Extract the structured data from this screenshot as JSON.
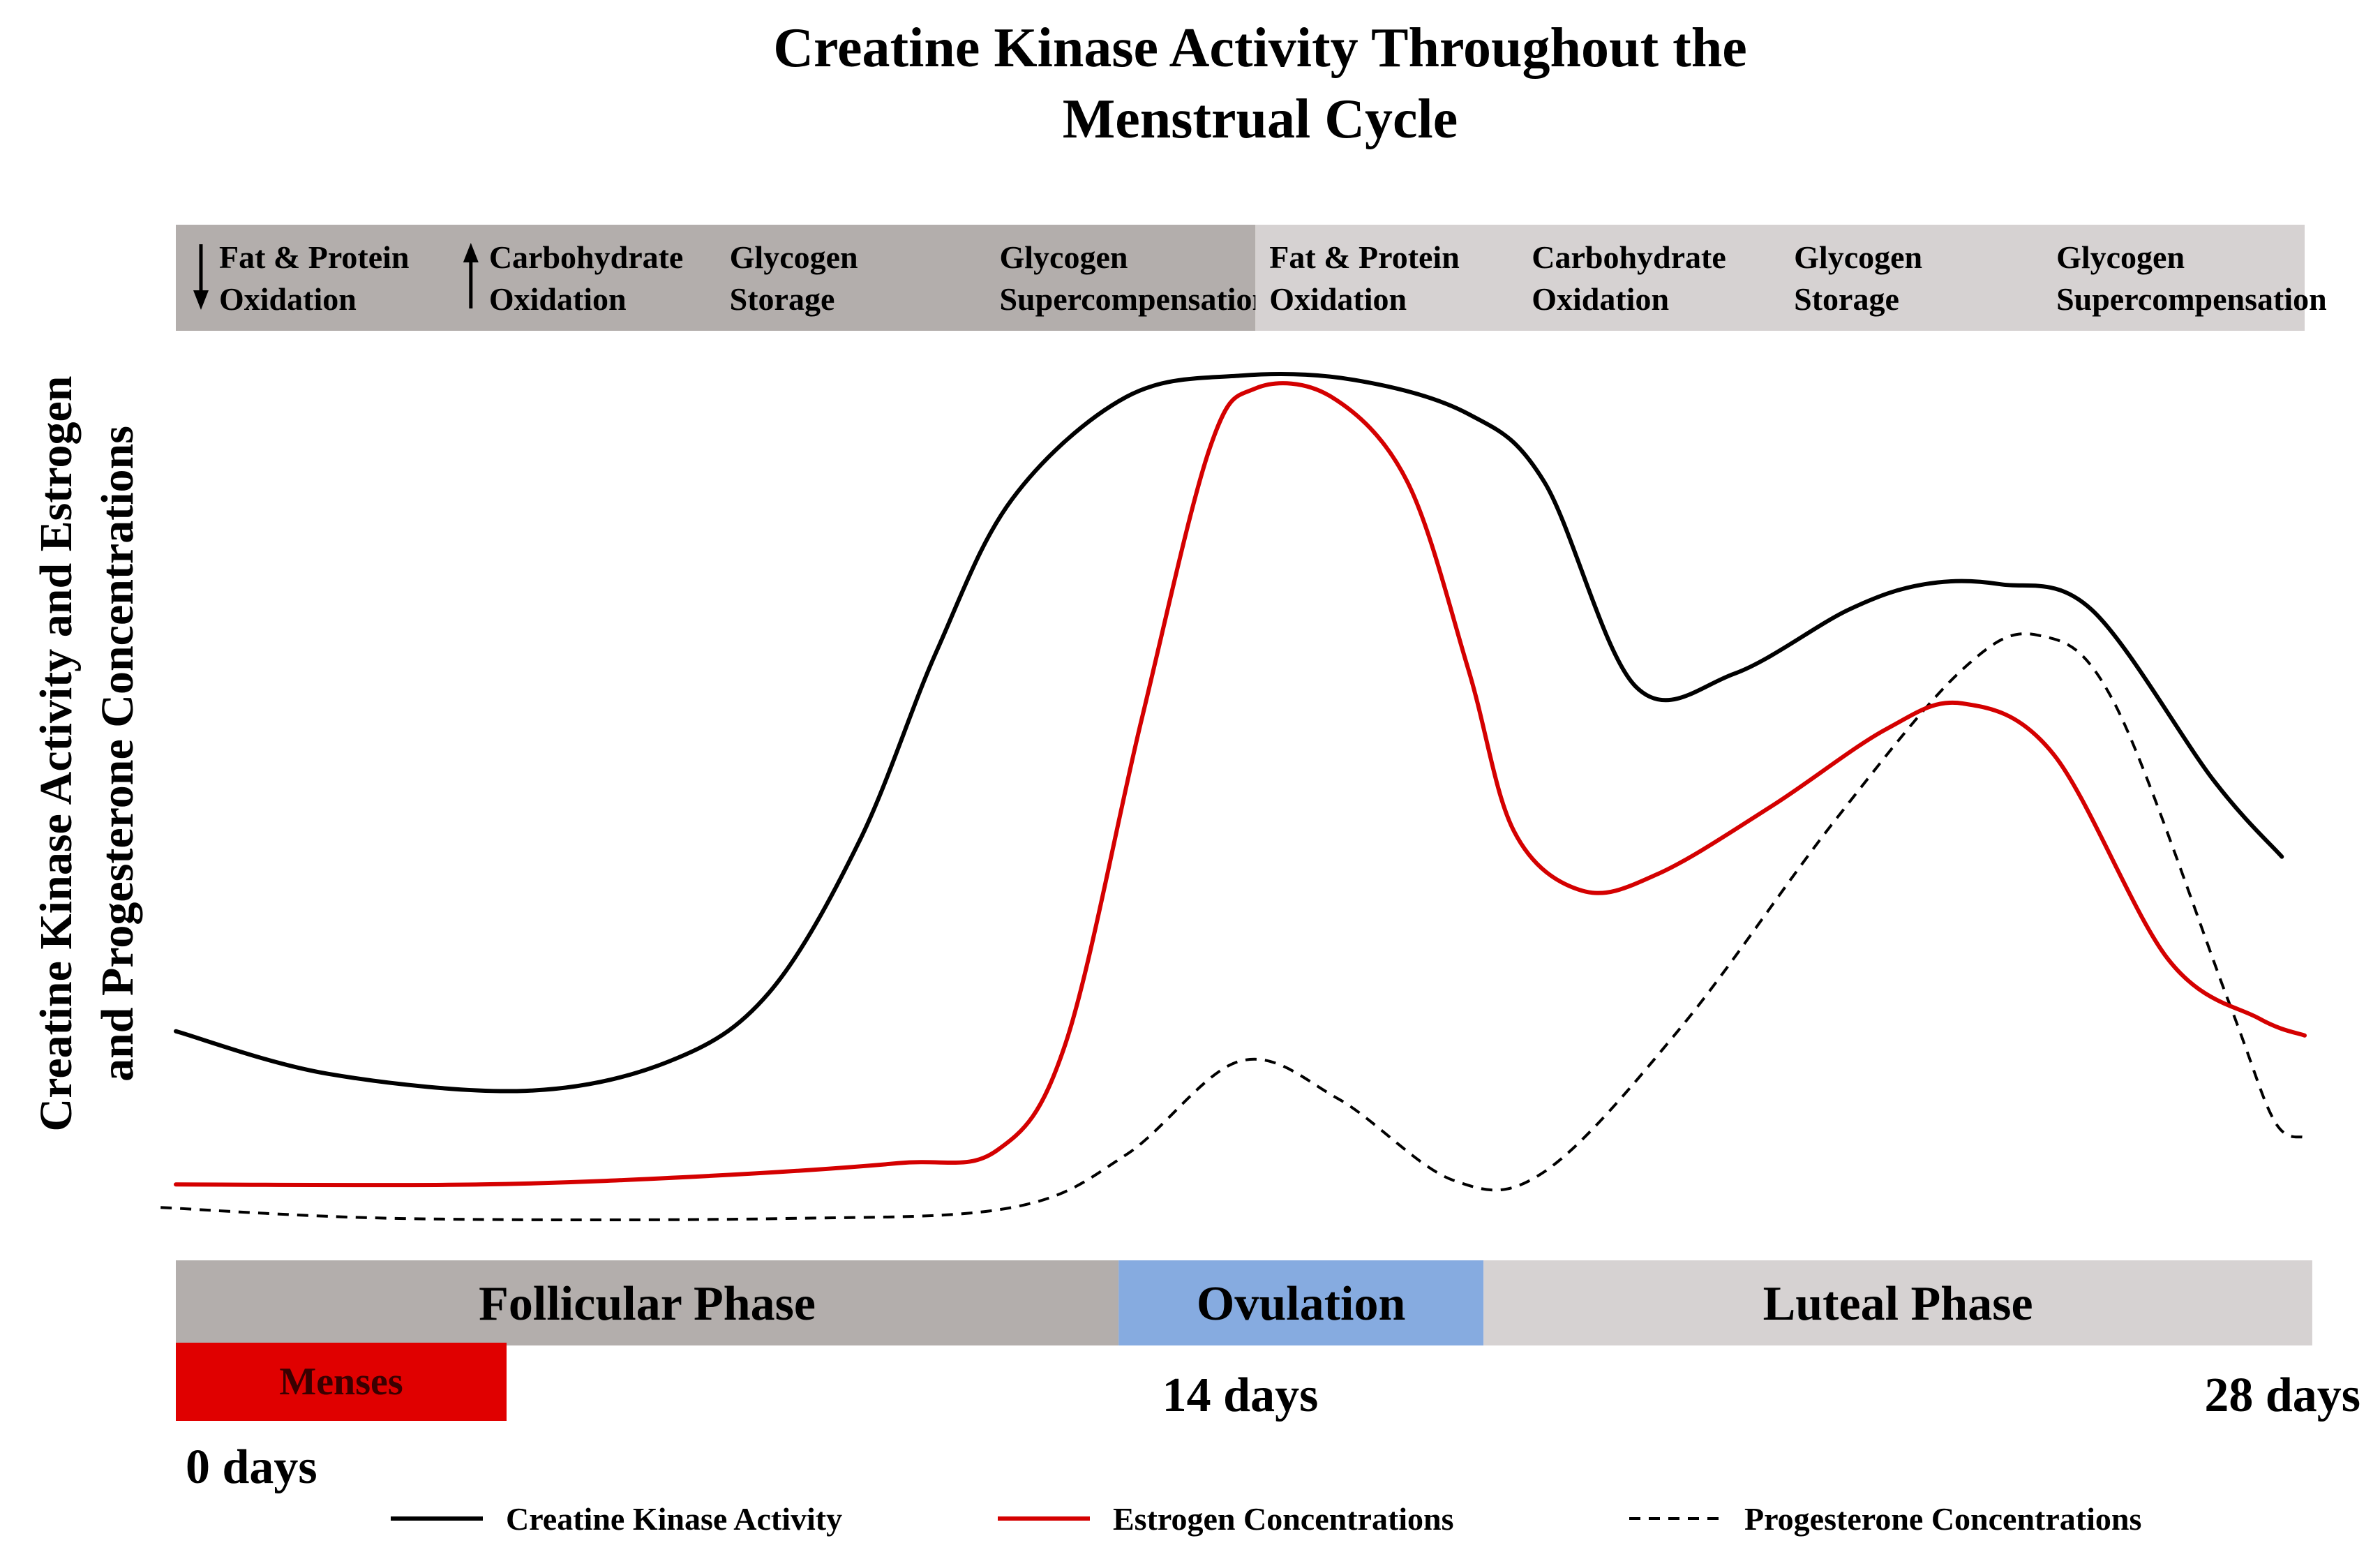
{
  "chart_data": {
    "type": "line",
    "title": [
      "Creatine Kinase Activity Throughout the",
      "Menstrual Cycle"
    ],
    "ylabel": [
      "Creatine Kinase Activity and Estrogen",
      "and Progesterone Concentrations"
    ],
    "xlim": [
      0,
      28
    ],
    "ylim": [
      0,
      100
    ],
    "x_ticks": [
      {
        "x": 0,
        "label": "0 days"
      },
      {
        "x": 14,
        "label": "14 days"
      },
      {
        "x": 28,
        "label": "28 days"
      }
    ],
    "top_bands": [
      {
        "x_start": 0,
        "x_end": 14.2,
        "color": "#b3aeac",
        "items": [
          {
            "arrow": "down",
            "lines": [
              "Fat & Protein",
              "Oxidation"
            ]
          },
          {
            "arrow": "up",
            "lines": [
              "Carbohydrate",
              "Oxidation"
            ]
          },
          {
            "arrow": "",
            "lines": [
              "Glycogen",
              "Storage"
            ]
          },
          {
            "arrow": "",
            "lines": [
              "Glycogen",
              "Supercompensation"
            ]
          }
        ]
      },
      {
        "x_start": 14.2,
        "x_end": 28,
        "color": "#d6d2d2",
        "items": [
          {
            "arrow": "",
            "lines": [
              "Fat & Protein",
              "Oxidation"
            ]
          },
          {
            "arrow": "",
            "lines": [
              "Carbohydrate",
              "Oxidation"
            ]
          },
          {
            "arrow": "",
            "lines": [
              "Glycogen",
              "Storage"
            ]
          },
          {
            "arrow": "",
            "lines": [
              "Glycogen",
              "Supercompensation"
            ]
          }
        ]
      }
    ],
    "phases": [
      {
        "label": "Follicular Phase",
        "x_start": 0,
        "x_end": 12.4,
        "color": "#b3aeac"
      },
      {
        "label": "Ovulation",
        "x_start": 12.4,
        "x_end": 17.2,
        "color": "#86abe0"
      },
      {
        "label": "Luteal Phase",
        "x_start": 17.2,
        "x_end": 28.1,
        "color": "#d6d2d2"
      }
    ],
    "menses": {
      "label": "Menses",
      "x_start": 0,
      "x_end": 4.35,
      "color": "#e00000"
    },
    "series": [
      {
        "name": "Creatine Kinase Activity",
        "color": "#000000",
        "dash": "solid",
        "points": [
          [
            0,
            21.5
          ],
          [
            2,
            16.5
          ],
          [
            4.6,
            14.5
          ],
          [
            6.5,
            18
          ],
          [
            7.8,
            26
          ],
          [
            9,
            44
          ],
          [
            10,
            66
          ],
          [
            11,
            84
          ],
          [
            12.5,
            96
          ],
          [
            14,
            98.5
          ],
          [
            15.5,
            98
          ],
          [
            17,
            94
          ],
          [
            18,
            86
          ],
          [
            19.2,
            62
          ],
          [
            20.5,
            63.5
          ],
          [
            22,
            71
          ],
          [
            23,
            74
          ],
          [
            24,
            74
          ],
          [
            25.2,
            71
          ],
          [
            26.8,
            51
          ],
          [
            27.7,
            42
          ]
        ]
      },
      {
        "name": "Estrogen Concentrations",
        "color": "#d40000",
        "dash": "solid",
        "points": [
          [
            0,
            3.5
          ],
          [
            4,
            3.5
          ],
          [
            7,
            4.5
          ],
          [
            9.5,
            6
          ],
          [
            10.8,
            7.5
          ],
          [
            11.7,
            20
          ],
          [
            12.7,
            58
          ],
          [
            13.6,
            90
          ],
          [
            14.2,
            97
          ],
          [
            15.2,
            96
          ],
          [
            16.2,
            86
          ],
          [
            17,
            64
          ],
          [
            17.6,
            45
          ],
          [
            18.5,
            38
          ],
          [
            19.5,
            40
          ],
          [
            21,
            48
          ],
          [
            22.5,
            57
          ],
          [
            23.5,
            60
          ],
          [
            24.7,
            54
          ],
          [
            26.2,
            30
          ],
          [
            27.4,
            23
          ],
          [
            28,
            21
          ]
        ]
      },
      {
        "name": "Progesterone Concentrations",
        "color": "#000000",
        "dash": "dashed",
        "points": [
          [
            -0.2,
            0.8
          ],
          [
            3,
            -0.5
          ],
          [
            8,
            -0.5
          ],
          [
            11,
            0.8
          ],
          [
            12.5,
            7
          ],
          [
            14,
            18
          ],
          [
            15.3,
            13.5
          ],
          [
            16.8,
            4
          ],
          [
            18,
            5
          ],
          [
            19.8,
            22
          ],
          [
            21.8,
            46
          ],
          [
            23.5,
            64
          ],
          [
            24.5,
            68
          ],
          [
            25.5,
            60
          ],
          [
            27,
            25
          ],
          [
            27.6,
            11
          ],
          [
            28,
            9
          ]
        ]
      }
    ],
    "legend": {
      "position": "bottom"
    }
  }
}
